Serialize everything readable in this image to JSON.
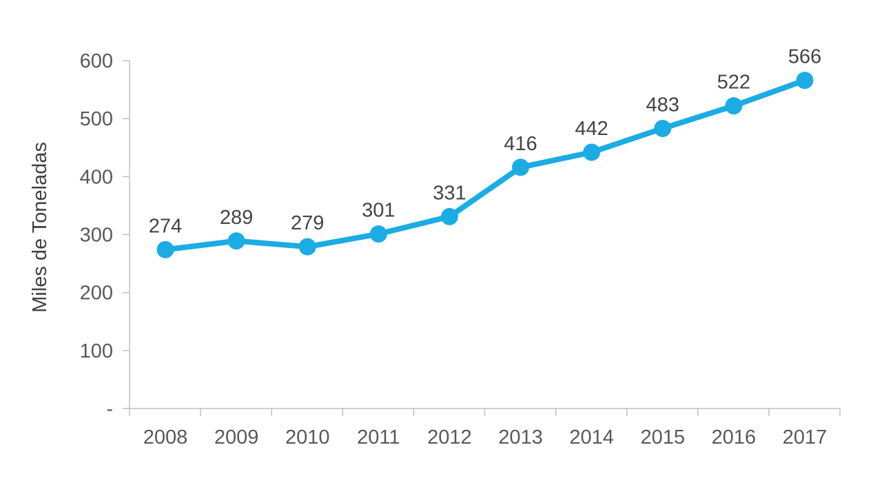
{
  "chart_data": {
    "type": "line",
    "title": "",
    "xlabel": "",
    "ylabel": "Miles de Toneladas",
    "categories": [
      "2008",
      "2009",
      "2010",
      "2011",
      "2012",
      "2013",
      "2014",
      "2015",
      "2016",
      "2017"
    ],
    "series": [
      {
        "name": "Miles de Toneladas",
        "values": [
          274,
          289,
          279,
          301,
          331,
          416,
          442,
          483,
          522,
          566
        ]
      }
    ],
    "show_data_labels": true,
    "ylim": [
      0,
      600
    ],
    "ytick_step": 100,
    "ytick_labels": [
      "-",
      "100",
      "200",
      "300",
      "400",
      "500",
      "600"
    ],
    "grid": false,
    "legend_position": "none",
    "marker": "circle",
    "colors": {
      "line": "#1BACE3",
      "marker": "#1BACE3",
      "axis": "#BFBFBF",
      "tick_text": "#595959",
      "data_label_text": "#444444",
      "axis_title_text": "#404040"
    }
  }
}
